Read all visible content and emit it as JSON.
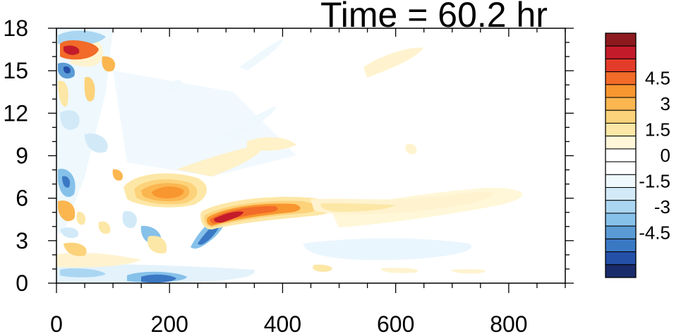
{
  "chart_data": {
    "type": "heatmap",
    "title": "Time = 60.2 hr",
    "xlim": [
      0,
      900
    ],
    "ylim": [
      0,
      18
    ],
    "x_ticks": [
      0,
      200,
      400,
      600,
      800
    ],
    "x_tick_labels": [
      "0",
      "200",
      "400",
      "600",
      "800"
    ],
    "y_ticks": [
      0,
      3,
      6,
      9,
      12,
      15,
      18
    ],
    "y_tick_labels": [
      "0",
      "3",
      "6",
      "9",
      "12",
      "15",
      "18"
    ],
    "colorbar": {
      "levels": [
        -5.25,
        -4.5,
        -3.75,
        -3,
        -2.25,
        -1.5,
        -0.75,
        0,
        0.75,
        1.5,
        2.25,
        3,
        3.75,
        4.5,
        5.25
      ],
      "tick_values": [
        4.5,
        3,
        1.5,
        0,
        -1.5,
        -3,
        -4.5
      ],
      "tick_labels": [
        "4.5",
        "3",
        "1.5",
        "0",
        "-1.5",
        "-3",
        "-4.5"
      ],
      "colors": [
        "#1a2b6b",
        "#2450a8",
        "#3b78c4",
        "#5a9bd5",
        "#86c1ea",
        "#aad6f2",
        "#d2eaf8",
        "#eef8fd",
        "#ffffff",
        "#ffffff",
        "#fff7d8",
        "#fde7a6",
        "#fcd27a",
        "#fbb650",
        "#f8962f",
        "#f26b28",
        "#e43c2a",
        "#c41b2b",
        "#8c1a1f"
      ]
    },
    "features": [
      {
        "x": 20,
        "y": 16.3,
        "value": 4.5
      },
      {
        "x": 25,
        "y": 14.8,
        "value": -3.0
      },
      {
        "x": 20,
        "y": 17.6,
        "value": -1.5
      },
      {
        "x": 95,
        "y": 15.3,
        "value": 2.0
      },
      {
        "x": 55,
        "y": 13.2,
        "value": 1.0
      },
      {
        "x": 20,
        "y": 11.5,
        "value": -1.0
      },
      {
        "x": 30,
        "y": 7.2,
        "value": -3.0
      },
      {
        "x": 15,
        "y": 5.3,
        "value": 2.5
      },
      {
        "x": 35,
        "y": 4.8,
        "value": 1.5
      },
      {
        "x": 200,
        "y": 6.8,
        "value": 3.0
      },
      {
        "x": 235,
        "y": 6.2,
        "value": 3.0
      },
      {
        "x": 155,
        "y": 4.8,
        "value": -1.0
      },
      {
        "x": 135,
        "y": 3.2,
        "value": 1.5
      },
      {
        "x": 280,
        "y": 2.8,
        "value": -3.0
      },
      {
        "x": 300,
        "y": 4.5,
        "value": 4.5
      },
      {
        "x": 350,
        "y": 5.0,
        "value": 3.5
      },
      {
        "x": 420,
        "y": 5.5,
        "value": 2.0
      },
      {
        "x": 520,
        "y": 5.2,
        "value": 0.8
      },
      {
        "x": 680,
        "y": 6.0,
        "value": 0.8
      },
      {
        "x": 550,
        "y": 2.5,
        "value": -0.8
      },
      {
        "x": 440,
        "y": 1.5,
        "value": 0.8
      },
      {
        "x": 220,
        "y": 0.4,
        "value": -3.5
      },
      {
        "x": 100,
        "y": 0.8,
        "value": -1.5
      },
      {
        "x": 300,
        "y": 0.6,
        "value": -1.0
      },
      {
        "x": 260,
        "y": 9.5,
        "value": 0.8
      },
      {
        "x": 370,
        "y": 10.0,
        "value": 0.8
      },
      {
        "x": 540,
        "y": 15.5,
        "value": 0.8
      },
      {
        "x": 430,
        "y": 14.0,
        "value": -0.8
      },
      {
        "x": 300,
        "y": 14.0,
        "value": -0.8
      },
      {
        "x": 110,
        "y": 9.2,
        "value": 1.0
      },
      {
        "x": 720,
        "y": 1.0,
        "value": 0.8
      }
    ]
  }
}
